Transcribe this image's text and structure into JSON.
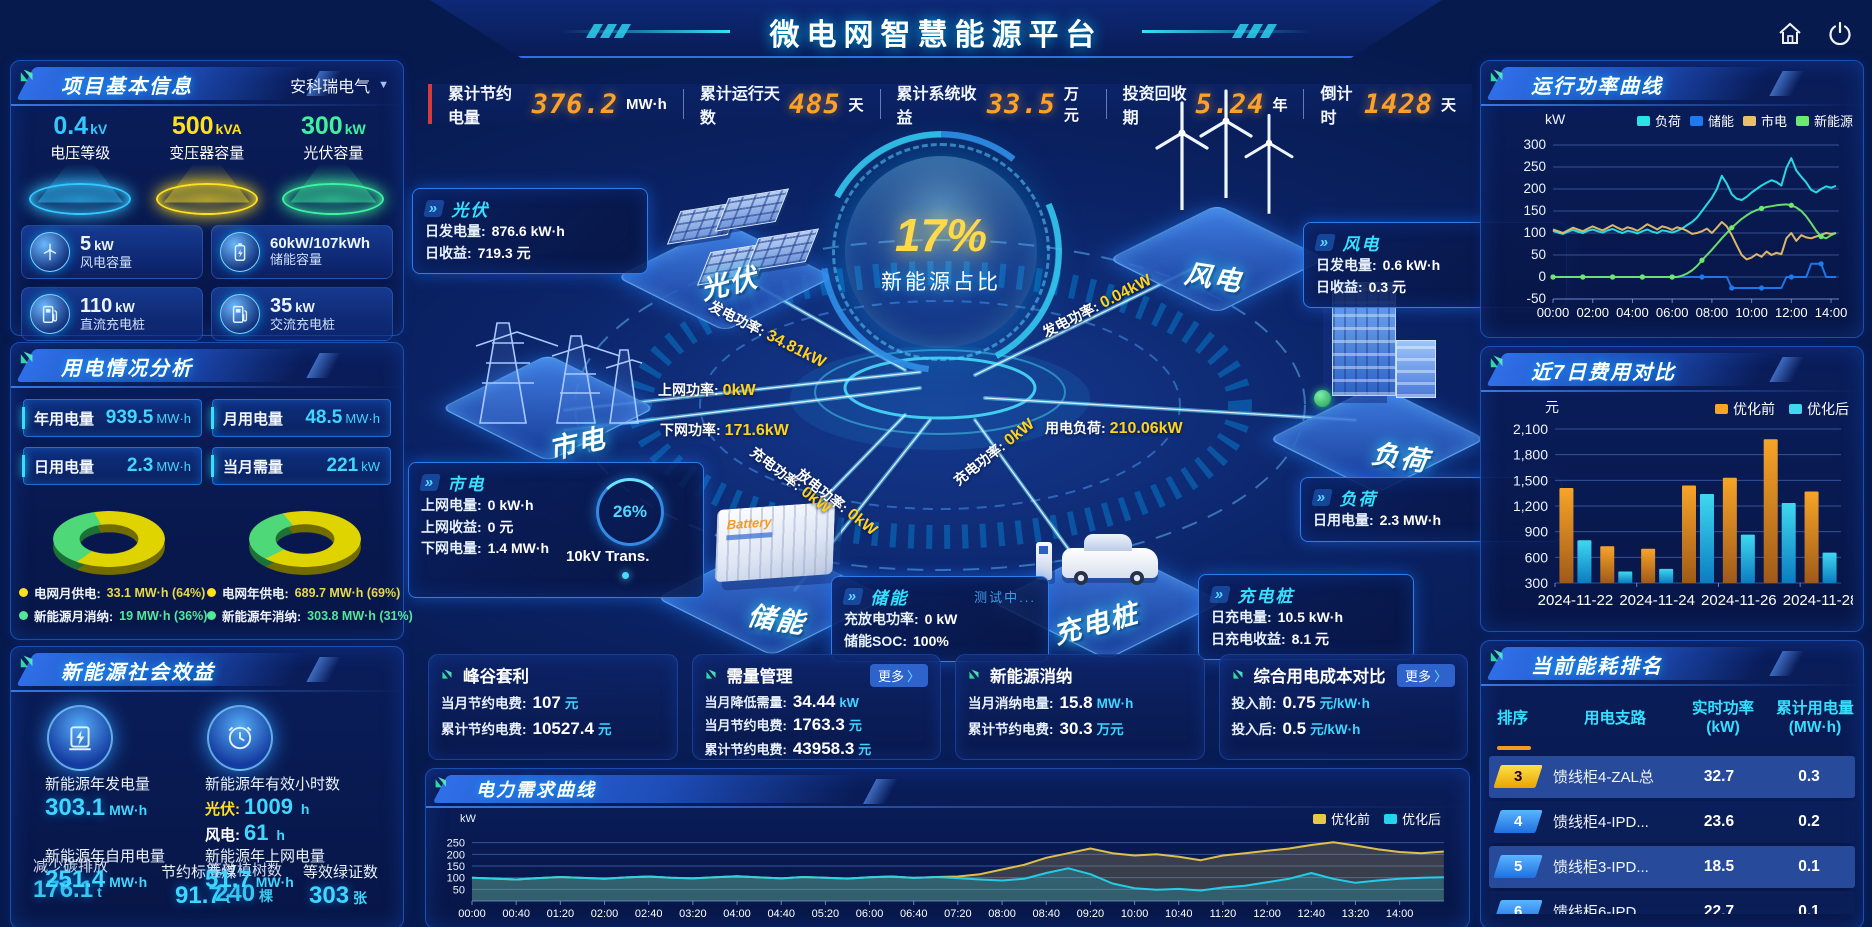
{
  "title": "微电网智慧能源平台",
  "ui": {
    "more_arrow": "〉",
    "dropdown_caret": "▼"
  },
  "company_selector": {
    "value": "安科瑞电气"
  },
  "kpi_bar": [
    {
      "label": "累计节约电量",
      "value": "376.2",
      "unit": "MW·h"
    },
    {
      "label": "累计运行天数",
      "value": "485",
      "unit": "天"
    },
    {
      "label": "累计系统收益",
      "value": "33.5",
      "unit": "万元"
    },
    {
      "label": "投资回收期",
      "value": "5.24",
      "unit": "年"
    },
    {
      "label": "倒计时",
      "value": "1428",
      "unit": "天"
    }
  ],
  "project_info": {
    "title": "项目基本信息",
    "spotlights": [
      {
        "value": "0.4",
        "unit": "kV",
        "label": "电压等级",
        "color": "#35c8ff"
      },
      {
        "value": "500",
        "unit": "kVA",
        "label": "变压器容量",
        "color": "#ffe01e"
      },
      {
        "value": "300",
        "unit": "kW",
        "label": "光伏容量",
        "color": "#3ef2a0"
      }
    ],
    "cards": [
      {
        "icon": "wind-turbine-icon",
        "value": "5",
        "unit": "kW",
        "label": "风电容量"
      },
      {
        "icon": "battery-icon",
        "value": "60kW/107kWh",
        "unit": "",
        "label": "储能容量"
      },
      {
        "icon": "dc-charger-icon",
        "value": "110",
        "unit": "kW",
        "label": "直流充电桩"
      },
      {
        "icon": "ac-charger-icon",
        "value": "35",
        "unit": "kW",
        "label": "交流充电桩"
      }
    ]
  },
  "power_analysis": {
    "title": "用电情况分析",
    "stats": [
      {
        "label": "年用电量",
        "value": "939.5",
        "unit": "MW·h"
      },
      {
        "label": "月用电量",
        "value": "48.5",
        "unit": "MW·h"
      },
      {
        "label": "日用电量",
        "value": "2.3",
        "unit": "MW·h"
      },
      {
        "label": "当月需量",
        "value": "221",
        "unit": "kW"
      }
    ],
    "donuts": [
      {
        "slices": [
          {
            "label": "电网月供电",
            "value": "33.1 MW·h (64%)",
            "pct": 64,
            "color": "#e0d400"
          },
          {
            "label": "新能源月消纳",
            "value": "19 MW·h (36%)",
            "pct": 36,
            "color": "#4ed878"
          }
        ]
      },
      {
        "slices": [
          {
            "label": "电网年供电",
            "value": "689.7 MW·h (69%)",
            "pct": 69,
            "color": "#e0d400"
          },
          {
            "label": "新能源年消纳",
            "value": "303.8 MW·h (31%)",
            "pct": 31,
            "color": "#4ed878"
          }
        ]
      }
    ]
  },
  "social_benefit": {
    "title": "新能源社会效益",
    "gen": {
      "label": "新能源年发电量",
      "value": "303.1",
      "unit": "MW·h"
    },
    "hours": {
      "label": "新能源年有效小时数",
      "lines": [
        {
          "k": "光伏:",
          "v": "1009",
          "u": "h"
        },
        {
          "k": "风电:",
          "v": "61",
          "u": "h"
        }
      ]
    },
    "self_use": {
      "label": "新能源年自用电量",
      "value": "251.4",
      "unit": "MW·h"
    },
    "co2": {
      "label": "减少碳排放",
      "value": "176.1",
      "unit": "t"
    },
    "coal": {
      "label": "节约标准煤",
      "value": "91.7",
      "unit": "t"
    },
    "grid_out": {
      "label": "新能源年上网电量",
      "value": "51.7",
      "unit": "MW·h"
    },
    "trees": {
      "label": "等效植树数",
      "value": "240",
      "unit": "棵"
    },
    "certs": {
      "label": "等效绿证数",
      "value": "303",
      "unit": "张"
    }
  },
  "center": {
    "percent": "17%",
    "percent_label": "新能源占比",
    "gauge": {
      "value": "26%",
      "label": "10kV Trans."
    },
    "devices": {
      "pv": "光伏",
      "wind": "风电",
      "grid": "市电",
      "storage": "储能",
      "charger": "充电桩",
      "load": "负荷",
      "battery_box_label": "Battery"
    },
    "info_boxes": [
      {
        "id": "pv",
        "title": "光伏",
        "rows": [
          {
            "k": "日发电量:",
            "v": "876.6 kW·h"
          },
          {
            "k": "日收益:",
            "v": "719.3 元"
          }
        ]
      },
      {
        "id": "wind",
        "title": "风电",
        "rows": [
          {
            "k": "日发电量:",
            "v": "0.6 kW·h"
          },
          {
            "k": "日收益:",
            "v": "0.3 元"
          }
        ]
      },
      {
        "id": "grid",
        "title": "市电",
        "rows": [
          {
            "k": "上网电量:",
            "v": "0 kW·h"
          },
          {
            "k": "上网收益:",
            "v": "0 元"
          },
          {
            "k": "下网电量:",
            "v": "1.4 MW·h"
          }
        ]
      },
      {
        "id": "storage",
        "title": "储能",
        "badge": "测试中...",
        "rows": [
          {
            "k": "充放电功率:",
            "v": "0 kW"
          },
          {
            "k": "储能SOC:",
            "v": "100%"
          }
        ]
      },
      {
        "id": "charger",
        "title": "充电桩",
        "rows": [
          {
            "k": "日充电量:",
            "v": "10.5 kW·h"
          },
          {
            "k": "日充电收益:",
            "v": "8.1 元"
          }
        ]
      },
      {
        "id": "load",
        "title": "负荷",
        "rows": [
          {
            "k": "日用电量:",
            "v": "2.3 MW·h"
          }
        ]
      }
    ],
    "flow_labels": [
      {
        "id": "pv",
        "label": "发电功率:",
        "value": "34.81kW"
      },
      {
        "id": "wind",
        "label": "发电功率:",
        "value": "0.04kW"
      },
      {
        "id": "up",
        "label": "上网功率:",
        "value": "0kW"
      },
      {
        "id": "down",
        "label": "下网功率:",
        "value": "171.6kW"
      },
      {
        "id": "charge_l",
        "label": "充电功率:",
        "value": "0kW"
      },
      {
        "id": "discharge",
        "label": "放电功率:",
        "value": "0kW"
      },
      {
        "id": "charge_r",
        "label": "充电功率:",
        "value": "0kW"
      },
      {
        "id": "load",
        "label": "用电负荷:",
        "value": "210.06kW"
      }
    ]
  },
  "benefit_cards": [
    {
      "title": "峰谷套利",
      "more": false,
      "rows": [
        {
          "k": "当月节约电费:",
          "v": "107",
          "u": "元"
        },
        {
          "k": "累计节约电费:",
          "v": "10527.4",
          "u": "元"
        }
      ]
    },
    {
      "title": "需量管理",
      "more": true,
      "more_label": "更多",
      "rows": [
        {
          "k": "当月降低需量:",
          "v": "34.44",
          "u": "kW"
        },
        {
          "k": "当月节约电费:",
          "v": "1763.3",
          "u": "元"
        },
        {
          "k": "累计节约电费:",
          "v": "43958.3",
          "u": "元"
        }
      ]
    },
    {
      "title": "新能源消纳",
      "more": false,
      "rows": [
        {
          "k": "当月消纳电量:",
          "v": "15.8",
          "u": "MW·h"
        },
        {
          "k": "累计节约电费:",
          "v": "30.3",
          "u": "万元"
        }
      ]
    },
    {
      "title": "综合用电成本对比",
      "more": true,
      "more_label": "更多",
      "rows": [
        {
          "k": "投入前:",
          "v": "0.75",
          "u": "元/kW·h"
        },
        {
          "k": "投入后:",
          "v": "0.5",
          "u": "元/kW·h"
        }
      ]
    }
  ],
  "chart_data": [
    {
      "id": "run_power",
      "type": "line",
      "title": "运行功率曲线",
      "unit": "kW",
      "ylim": [
        -50,
        300
      ],
      "yticks": [
        -50,
        0,
        50,
        100,
        150,
        200,
        250,
        300
      ],
      "xlim": [
        0,
        14.4
      ],
      "x_start_h": 0,
      "x_step_h": 0.25,
      "xtick_step_h": 2,
      "xticks": [
        "00:00",
        "02:00",
        "04:00",
        "06:00",
        "08:00",
        "10:00",
        "12:00",
        "14:00"
      ],
      "grid": true,
      "legend_position": "top",
      "series": [
        {
          "name": "负荷",
          "color": "#27e5e5",
          "values": [
            105,
            101,
            98,
            103,
            107,
            103,
            100,
            105,
            108,
            104,
            101,
            106,
            109,
            104,
            100,
            105,
            103,
            99,
            104,
            108,
            103,
            100,
            106,
            104,
            101,
            105,
            110,
            118,
            125,
            135,
            150,
            165,
            180,
            200,
            230,
            212,
            188,
            178,
            175,
            182,
            192,
            200,
            208,
            214,
            220,
            216,
            208,
            248,
            270,
            242,
            228,
            215,
            198,
            192,
            200,
            206,
            203,
            207
          ]
        },
        {
          "name": "储能",
          "color": "#1f7af0",
          "values": [
            0,
            0,
            0,
            0,
            0,
            0,
            0,
            0,
            0,
            0,
            0,
            0,
            0,
            0,
            0,
            0,
            0,
            0,
            0,
            0,
            0,
            0,
            0,
            0,
            0,
            0,
            0,
            0,
            0,
            0,
            0,
            0,
            0,
            0,
            0,
            0,
            -25,
            -25,
            -25,
            -25,
            -25,
            -25,
            -25,
            -25,
            -25,
            -25,
            -25,
            0,
            0,
            0,
            0,
            0,
            30,
            30,
            30,
            0,
            0,
            0
          ]
        },
        {
          "name": "市电",
          "color": "#e8c06a",
          "values": [
            108,
            104,
            100,
            106,
            112,
            108,
            104,
            110,
            115,
            110,
            106,
            112,
            118,
            112,
            107,
            113,
            110,
            105,
            112,
            120,
            114,
            108,
            115,
            112,
            107,
            113,
            110,
            105,
            98,
            100,
            104,
            110,
            100,
            112,
            125,
            115,
            95,
            72,
            50,
            40,
            44,
            52,
            46,
            58,
            50,
            55,
            52,
            88,
            100,
            82,
            95,
            90,
            88,
            92,
            96,
            100,
            98,
            100
          ]
        },
        {
          "name": "新能源",
          "color": "#6ee86e",
          "values": [
            0,
            0,
            0,
            0,
            0,
            0,
            0,
            0,
            0,
            0,
            0,
            0,
            0,
            0,
            0,
            0,
            0,
            0,
            0,
            0,
            0,
            0,
            0,
            0,
            0,
            0,
            3,
            8,
            15,
            25,
            38,
            50,
            62,
            75,
            88,
            100,
            112,
            122,
            132,
            140,
            147,
            152,
            156,
            159,
            161,
            163,
            164,
            165,
            163,
            158,
            150,
            138,
            122,
            105,
            92,
            88,
            95,
            100
          ]
        }
      ]
    },
    {
      "id": "cost_7d",
      "type": "bar",
      "title": "近7日费用对比",
      "unit": "元",
      "ylim": [
        300,
        2100
      ],
      "yticks": [
        300,
        600,
        900,
        1200,
        1500,
        1800,
        2100
      ],
      "categories": [
        "2024-11-22",
        "2024-11-23",
        "2024-11-24",
        "2024-11-25",
        "2024-11-26",
        "2024-11-27",
        "2024-11-28"
      ],
      "xtick_labels_shown": [
        "2024-11-22",
        "2024-11-24",
        "2024-11-26",
        "2024-11-28"
      ],
      "grid": true,
      "legend_position": "top",
      "series": [
        {
          "name": "优化前",
          "color_top": "#f7a428",
          "color_bottom": "#a05a18",
          "values": [
            1410,
            730,
            700,
            1440,
            1530,
            1980,
            1370
          ]
        },
        {
          "name": "优化后",
          "color_top": "#3fd8f0",
          "color_bottom": "#0b7cc0",
          "values": [
            800,
            435,
            465,
            1340,
            865,
            1235,
            655
          ]
        }
      ]
    },
    {
      "id": "demand_curve",
      "type": "area",
      "title": "电力需求曲线",
      "unit": "kW",
      "ylim": [
        0,
        300
      ],
      "yticks": [
        50,
        100,
        150,
        200,
        250
      ],
      "xlim": [
        0,
        14.67
      ],
      "x_start_h": 0,
      "x_step_h": 0.33333,
      "xtick_step_h": 0.66667,
      "xticks": [
        "00:00",
        "00:40",
        "01:20",
        "02:00",
        "02:40",
        "03:20",
        "04:00",
        "04:40",
        "05:20",
        "06:00",
        "06:40",
        "07:20",
        "08:00",
        "08:40",
        "09:20",
        "10:00",
        "10:40",
        "11:20",
        "12:00",
        "12:40",
        "13:20",
        "14:00"
      ],
      "grid": true,
      "legend_position": "top-right",
      "series": [
        {
          "name": "优化前",
          "color": "#e8c84a",
          "values": [
            100,
            96,
            92,
            98,
            103,
            99,
            95,
            101,
            105,
            100,
            97,
            102,
            106,
            101,
            97,
            103,
            100,
            96,
            102,
            105,
            99,
            103,
            105,
            115,
            135,
            155,
            185,
            205,
            225,
            205,
            195,
            200,
            190,
            175,
            195,
            205,
            215,
            225,
            240,
            252,
            238,
            222,
            210,
            205,
            212
          ]
        },
        {
          "name": "优化后",
          "color": "#22d4ee",
          "values": [
            100,
            96,
            92,
            98,
            103,
            99,
            95,
            101,
            105,
            100,
            97,
            102,
            106,
            101,
            97,
            103,
            100,
            96,
            102,
            105,
            99,
            103,
            98,
            92,
            88,
            95,
            120,
            140,
            115,
            75,
            55,
            48,
            52,
            45,
            58,
            65,
            80,
            95,
            120,
            95,
            78,
            88,
            95,
            100,
            102
          ]
        }
      ]
    }
  ],
  "ranking": {
    "title": "当前能耗排名",
    "columns": [
      "排序",
      "用电支路",
      "实时功率\n(kW)",
      "累计用电量\n(MW·h)"
    ],
    "rows": [
      {
        "rank": "3",
        "rank_color": "yellow",
        "branch": "馈线柜4-ZAL总",
        "power": "32.7",
        "energy": "0.3",
        "highlight": true
      },
      {
        "rank": "4",
        "rank_color": "blue",
        "branch": "馈线柜4-IPD...",
        "power": "23.6",
        "energy": "0.2",
        "highlight": false
      },
      {
        "rank": "5",
        "rank_color": "blue",
        "branch": "馈线柜3-IPD...",
        "power": "18.5",
        "energy": "0.1",
        "highlight": true
      },
      {
        "rank": "6",
        "rank_color": "blue",
        "branch": "馈线柜6-IPD",
        "power": "22.7",
        "energy": "0.1",
        "highlight": false
      }
    ]
  }
}
